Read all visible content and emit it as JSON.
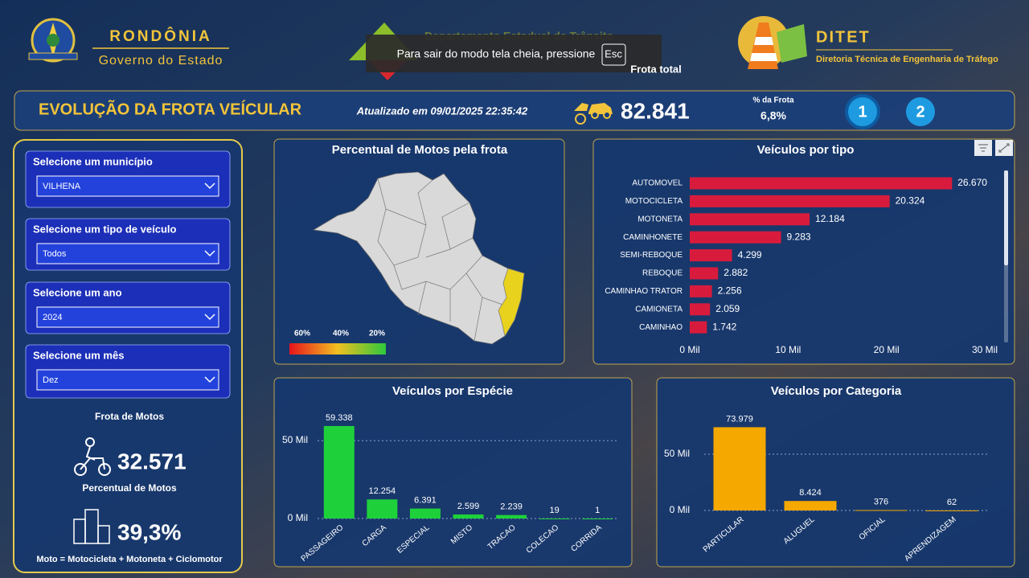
{
  "header": {
    "state_name": "RONDÔNIA",
    "state_subtitle": "Governo do Estado",
    "department": "Departamento Estadual de Trânsito",
    "fullscreen_notice": "Para sair do modo tela cheia, pressione",
    "fullscreen_key": "Esc",
    "agency": "DITET",
    "agency_subtitle": "Diretoria Técnica de Engenharia de Tráfego"
  },
  "title_bar": {
    "title": "EVOLUÇÃO DA FROTA VEÍCULAR",
    "updated": "Atualizado em 09/01/2025 22:35:42",
    "fleet_label": "Frota total",
    "fleet_value": "82.841",
    "share_label": "% da Frota",
    "share_value": "6,8%",
    "pages": [
      "1",
      "2"
    ]
  },
  "filters": [
    {
      "label": "Selecione um município",
      "value": "VILHENA"
    },
    {
      "label": "Selecione um tipo de veículo",
      "value": "Todos"
    },
    {
      "label": "Selecione um ano",
      "value": "2024"
    },
    {
      "label": "Selecione um mês",
      "value": "Dez"
    }
  ],
  "moto_panel": {
    "fleet_label": "Frota de Motos",
    "fleet_value": "32.571",
    "share_label": "Percentual de Motos",
    "share_value": "39,3%",
    "footnote": "Moto = Motocicleta + Motoneta + Ciclomotor"
  },
  "chart_data": [
    {
      "type": "map",
      "title": "Percentual de Motos pela frota",
      "colorbar_ticks": [
        {
          "value": 60,
          "label": "60%"
        },
        {
          "value": 40,
          "label": "40%"
        },
        {
          "value": 20,
          "label": "20%"
        }
      ]
    },
    {
      "type": "bar",
      "orientation": "horizontal",
      "title": "Veículos por tipo",
      "categories": [
        "AUTOMOVEL",
        "MOTOCICLETA",
        "MOTONETA",
        "CAMINHONETE",
        "SEMI-REBOQUE",
        "REBOQUE",
        "CAMINHAO TRATOR",
        "CAMIONETA",
        "CAMINHAO"
      ],
      "values": [
        26670,
        20324,
        12184,
        9283,
        4299,
        2882,
        2256,
        2059,
        1742
      ],
      "value_labels": [
        "26.670",
        "20.324",
        "12.184",
        "9.283",
        "4.299",
        "2.882",
        "2.256",
        "2.059",
        "1.742"
      ],
      "color": "#d81b3c",
      "xlim": [
        0,
        30000
      ],
      "xticks": [
        {
          "value": 0,
          "label": "0 Mil"
        },
        {
          "value": 10000,
          "label": "10 Mil"
        },
        {
          "value": 20000,
          "label": "20 Mil"
        },
        {
          "value": 30000,
          "label": "30 Mil"
        }
      ],
      "grid": false
    },
    {
      "type": "bar",
      "orientation": "vertical",
      "title": "Veículos por Espécie",
      "categories": [
        "PASSAGEIRO",
        "CARGA",
        "ESPECIAL",
        "MISTO",
        "TRACAO",
        "COLECAO",
        "CORRIDA"
      ],
      "values": [
        59338,
        12254,
        6391,
        2599,
        2239,
        19,
        1
      ],
      "value_labels": [
        "59.338",
        "12.254",
        "6.391",
        "2.599",
        "2.239",
        "19",
        "1"
      ],
      "color": "#1ed13b",
      "ylim": [
        0,
        65000
      ],
      "yticks": [
        {
          "value": 0,
          "label": "0 Mil"
        },
        {
          "value": 50000,
          "label": "50 Mil"
        }
      ],
      "grid": true
    },
    {
      "type": "bar",
      "orientation": "vertical",
      "title": "Veículos por Categoria",
      "categories": [
        "PARTICULAR",
        "ALUGUEL",
        "OFICIAL",
        "APRENDIZAGEM"
      ],
      "values": [
        73979,
        8424,
        376,
        62
      ],
      "value_labels": [
        "73.979",
        "8.424",
        "376",
        "62"
      ],
      "color": "#f5a800",
      "ylim": [
        0,
        85000
      ],
      "yticks": [
        {
          "value": 0,
          "label": "0 Mil"
        },
        {
          "value": 50000,
          "label": "50 Mil"
        }
      ],
      "grid": true
    }
  ]
}
